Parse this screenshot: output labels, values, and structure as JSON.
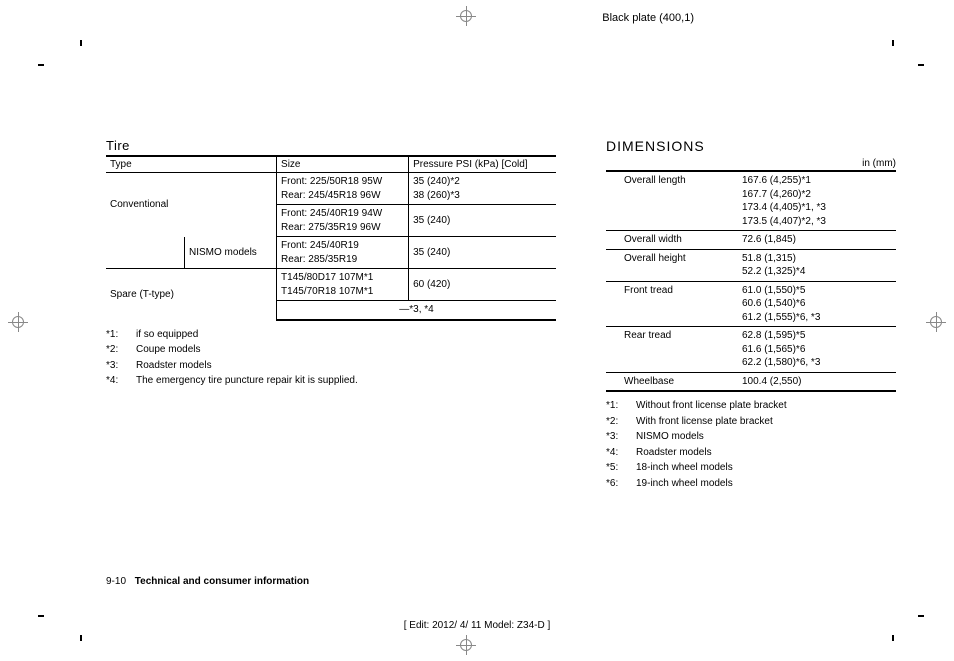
{
  "plate_header": "Black plate (400,1)",
  "tire": {
    "title": "Tire",
    "headers": [
      "Type",
      "Size",
      "Pressure PSI (kPa) [Cold]"
    ],
    "rows": [
      {
        "type": "Conventional",
        "size": "Front: 225/50R18 95W\nRear: 245/45R18 96W",
        "pressure": "35 (240)*2\n38 (260)*3"
      },
      {
        "type": "",
        "size": "Front: 245/40R19 94W\nRear: 275/35R19 96W",
        "pressure": "35 (240)"
      },
      {
        "type": "NISMO models",
        "size": "Front: 245/40R19\nRear: 285/35R19",
        "pressure": "35 (240)"
      },
      {
        "type": "Spare (T-type)",
        "size": "T145/80D17 107M*1\nT145/70R18 107M*1",
        "pressure": "60 (420)"
      },
      {
        "type": "",
        "size": "—*3, *4",
        "pressure": ""
      }
    ],
    "footnotes": [
      {
        "tag": "*1:",
        "text": "if so equipped"
      },
      {
        "tag": "*2:",
        "text": "Coupe models"
      },
      {
        "tag": "*3:",
        "text": "Roadster models"
      },
      {
        "tag": "*4:",
        "text": "The emergency tire puncture repair kit is supplied."
      }
    ]
  },
  "dimensions": {
    "title": "DIMENSIONS",
    "unit": "in (mm)",
    "rows": [
      {
        "label": "Overall length",
        "value": "167.6 (4,255)*1\n167.7 (4,260)*2\n173.4 (4,405)*1, *3\n173.5 (4,407)*2, *3"
      },
      {
        "label": "Overall width",
        "value": "72.6 (1,845)"
      },
      {
        "label": "Overall height",
        "value": "51.8 (1,315)\n52.2 (1,325)*4"
      },
      {
        "label": "Front tread",
        "value": "61.0 (1,550)*5\n60.6 (1,540)*6\n61.2 (1,555)*6, *3"
      },
      {
        "label": "Rear tread",
        "value": "62.8 (1,595)*5\n61.6 (1,565)*6\n62.2 (1,580)*6, *3"
      },
      {
        "label": "Wheelbase",
        "value": "100.4 (2,550)"
      }
    ],
    "footnotes": [
      {
        "tag": "*1:",
        "text": "Without front license plate bracket"
      },
      {
        "tag": "*2:",
        "text": "With front license plate bracket"
      },
      {
        "tag": "*3:",
        "text": "NISMO models"
      },
      {
        "tag": "*4:",
        "text": "Roadster models"
      },
      {
        "tag": "*5:",
        "text": "18-inch wheel models"
      },
      {
        "tag": "*6:",
        "text": "19-inch wheel models"
      }
    ]
  },
  "page_footer": {
    "page": "9-10",
    "section": "Technical and consumer information"
  },
  "edit_line": "[ Edit: 2012/ 4/ 11   Model: Z34-D ]"
}
